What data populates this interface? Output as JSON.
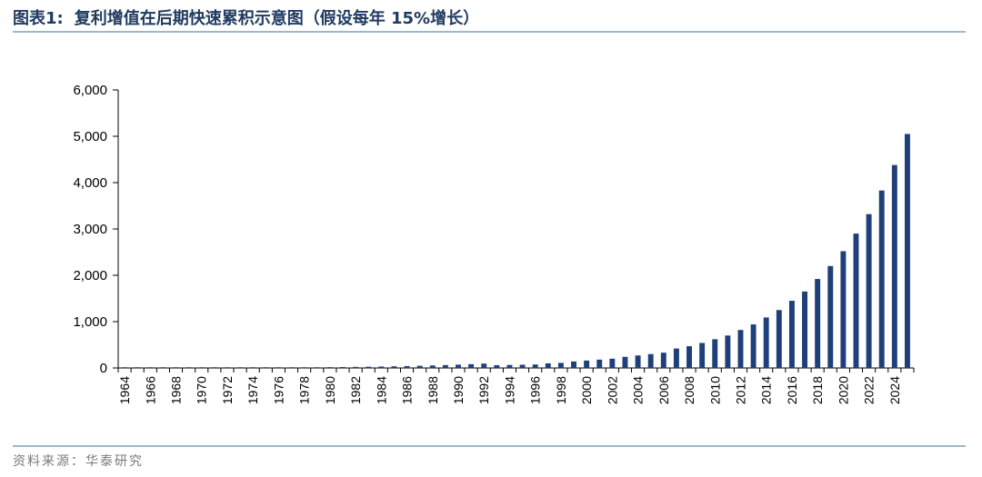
{
  "header": {
    "figure_label": "图表1:",
    "title": "复利增值在后期快速累积示意图（假设每年 15%增长）"
  },
  "footer": {
    "source": "资料来源：华泰研究"
  },
  "colors": {
    "bar": "#1f3f7a",
    "rule": "#9fb6c9",
    "title": "#1f3a5f"
  },
  "chart_data": {
    "type": "bar",
    "title": "复利增值在后期快速累积示意图（假设每年 15%增长）",
    "xlabel": "",
    "ylabel": "",
    "ylim": [
      0,
      6000
    ],
    "yticks": [
      "0",
      "1,000",
      "2,000",
      "3,000",
      "4,000",
      "5,000",
      "6,000"
    ],
    "ytick_values": [
      0,
      1000,
      2000,
      3000,
      4000,
      5000,
      6000
    ],
    "xtick_labels": [
      "1964",
      "1966",
      "1968",
      "1970",
      "1972",
      "1974",
      "1976",
      "1978",
      "1980",
      "1982",
      "1984",
      "1986",
      "1988",
      "1990",
      "1992",
      "1994",
      "1996",
      "1998",
      "2000",
      "2002",
      "2004",
      "2006",
      "2008",
      "2010",
      "2012",
      "2014",
      "2016",
      "2018",
      "2020",
      "2022",
      "2024"
    ],
    "categories": [
      "1964",
      "1965",
      "1966",
      "1967",
      "1968",
      "1969",
      "1970",
      "1971",
      "1972",
      "1973",
      "1974",
      "1975",
      "1976",
      "1977",
      "1978",
      "1979",
      "1980",
      "1981",
      "1982",
      "1983",
      "1984",
      "1985",
      "1986",
      "1987",
      "1988",
      "1989",
      "1990",
      "1991",
      "1992",
      "1993",
      "1994",
      "1995",
      "1996",
      "1997",
      "1998",
      "1999",
      "2000",
      "2001",
      "2002",
      "2003",
      "2004",
      "2005",
      "2006",
      "2007",
      "2008",
      "2009",
      "2010",
      "2011",
      "2012",
      "2013",
      "2014",
      "2015",
      "2016",
      "2017",
      "2018",
      "2019",
      "2020",
      "2021",
      "2022",
      "2023",
      "2024",
      "2025"
    ],
    "values": [
      2,
      2,
      2,
      3,
      3,
      4,
      4,
      5,
      6,
      7,
      8,
      9,
      10,
      12,
      13,
      15,
      18,
      20,
      23,
      27,
      31,
      36,
      41,
      47,
      54,
      62,
      71,
      82,
      94,
      60,
      65,
      70,
      75,
      100,
      110,
      140,
      160,
      180,
      200,
      240,
      270,
      300,
      330,
      420,
      470,
      540,
      620,
      700,
      820,
      940,
      1090,
      1250,
      1450,
      1650,
      1920,
      2200,
      2520,
      2900,
      3320,
      3830,
      4380,
      5050
    ],
    "grid": false,
    "legend": "none"
  }
}
